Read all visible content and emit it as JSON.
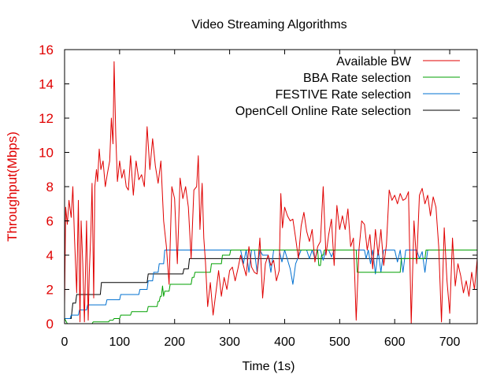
{
  "chart_data": {
    "type": "line",
    "title": "Video Streaming Algorithms",
    "xlabel": "Time (1s)",
    "ylabel": "Throughput(Mbps)",
    "xlim": [
      0,
      750
    ],
    "ylim": [
      0,
      16
    ],
    "x_ticks": [
      0,
      100,
      200,
      300,
      400,
      500,
      600,
      700
    ],
    "y_ticks": [
      0,
      2,
      4,
      6,
      8,
      10,
      12,
      14,
      16
    ],
    "x_tick_labels": [
      "0",
      "100",
      "200",
      "300",
      "400",
      "500",
      "600",
      "700"
    ],
    "y_tick_labels": [
      "0",
      "2",
      "4",
      "6",
      "8",
      "10",
      "12",
      "14",
      "16"
    ],
    "ylabel_color": "#e00000",
    "ytick_color": "#e00000",
    "grid": false,
    "legend_position": "top-right",
    "series": [
      {
        "name": "Available BW",
        "color": "#e00000",
        "x": [
          0,
          2,
          5,
          8,
          12,
          15,
          18,
          22,
          25,
          28,
          30,
          33,
          36,
          40,
          43,
          45,
          48,
          50,
          53,
          55,
          58,
          60,
          63,
          66,
          70,
          74,
          78,
          82,
          85,
          88,
          90,
          93,
          96,
          100,
          104,
          108,
          112,
          116,
          120,
          125,
          130,
          135,
          140,
          145,
          150,
          155,
          160,
          165,
          170,
          175,
          180,
          185,
          190,
          195,
          200,
          205,
          210,
          215,
          220,
          225,
          230,
          235,
          240,
          243,
          246,
          250,
          253,
          256,
          260,
          265,
          270,
          275,
          280,
          285,
          290,
          295,
          300,
          305,
          310,
          315,
          320,
          325,
          330,
          335,
          340,
          345,
          350,
          355,
          360,
          365,
          370,
          375,
          380,
          385,
          390,
          393,
          396,
          400,
          405,
          410,
          415,
          420,
          425,
          430,
          435,
          440,
          445,
          450,
          455,
          460,
          465,
          470,
          475,
          480,
          485,
          490,
          495,
          500,
          505,
          510,
          515,
          520,
          525,
          530,
          535,
          540,
          545,
          550,
          555,
          560,
          565,
          570,
          575,
          580,
          585,
          590,
          595,
          600,
          605,
          610,
          615,
          620,
          625,
          630,
          635,
          640,
          645,
          650,
          655,
          660,
          665,
          670,
          675,
          680,
          685,
          690,
          695,
          700,
          705,
          710,
          715,
          720,
          725,
          730,
          735,
          740,
          745,
          750
        ],
        "y": [
          1.1,
          6.8,
          5.8,
          7.2,
          6.2,
          8.0,
          5.0,
          1.8,
          7.2,
          0.1,
          6.0,
          3.5,
          0.1,
          6.0,
          0.2,
          3.0,
          5.5,
          8.2,
          1.5,
          8.0,
          9.0,
          8.3,
          10.2,
          9.0,
          9.5,
          8.0,
          8.8,
          9.5,
          12.0,
          10.5,
          15.3,
          11.0,
          8.3,
          9.5,
          8.5,
          9.0,
          8.0,
          7.8,
          9.8,
          7.5,
          9.5,
          8.4,
          8.7,
          8.0,
          11.5,
          9.0,
          10.8,
          9.2,
          8.2,
          9.5,
          6.0,
          4.5,
          2.3,
          8.0,
          7.3,
          3.5,
          8.5,
          7.3,
          8.0,
          6.8,
          3.8,
          7.8,
          8.0,
          9.8,
          5.5,
          8.2,
          5.0,
          3.6,
          1.0,
          2.4,
          0.5,
          1.8,
          3.1,
          1.6,
          2.7,
          2.0,
          3.1,
          3.3,
          2.5,
          3.2,
          4.0,
          3.4,
          2.8,
          4.5,
          3.3,
          3.0,
          2.9,
          5.0,
          1.5,
          3.5,
          4.0,
          3.4,
          3.7,
          2.5,
          3.1,
          7.6,
          5.6,
          6.8,
          6.3,
          6.0,
          6.1,
          5.0,
          3.8,
          5.7,
          6.5,
          5.4,
          4.8,
          5.5,
          3.6,
          4.5,
          4.8,
          8.0,
          4.0,
          5.2,
          6.1,
          3.4,
          6.9,
          5.5,
          6.3,
          5.5,
          6.7,
          4.5,
          5.0,
          0.2,
          4.3,
          6.0,
          5.8,
          4.3,
          5.2,
          3.2,
          5.5,
          4.0,
          5.5,
          3.4,
          4.6,
          7.8,
          7.2,
          7.5,
          7.0,
          7.6,
          7.2,
          7.3,
          7.7,
          0.0,
          6.0,
          3.5,
          7.5,
          7.9,
          7.0,
          7.5,
          6.3,
          7.4,
          6.8,
          4.5,
          0.1,
          5.6,
          2.5,
          0.6,
          5.0,
          2.2,
          3.5,
          2.8,
          1.8,
          2.5,
          1.6,
          3.0,
          2.0,
          3.8
        ]
      },
      {
        "name": "BBA Rate selection",
        "color": "#00a000",
        "x": [
          0,
          5,
          50,
          52,
          80,
          82,
          88,
          90,
          100,
          102,
          120,
          122,
          150,
          152,
          168,
          170,
          172,
          174,
          176,
          178,
          180,
          182,
          190,
          192,
          230,
          232,
          235,
          237,
          265,
          267,
          285,
          287,
          300,
          302,
          320,
          322,
          420,
          422,
          460,
          462,
          465,
          467,
          470,
          472,
          530,
          532,
          610,
          612,
          655,
          657,
          750
        ],
        "y": [
          0.3,
          0.0,
          0.0,
          0.1,
          0.1,
          0.2,
          0.2,
          0.3,
          0.3,
          0.5,
          0.5,
          0.7,
          0.7,
          1.0,
          1.0,
          1.3,
          1.3,
          1.6,
          1.6,
          2.2,
          1.6,
          1.9,
          1.9,
          2.3,
          2.3,
          2.7,
          2.7,
          3.0,
          3.0,
          3.5,
          3.5,
          4.0,
          4.0,
          4.3,
          4.3,
          4.3,
          4.3,
          4.3,
          4.3,
          3.4,
          3.4,
          4.0,
          4.0,
          4.3,
          4.3,
          3.0,
          3.0,
          3.8,
          3.8,
          4.3,
          4.3
        ]
      },
      {
        "name": "FESTIVE Rate selection",
        "color": "#0070d0",
        "x": [
          0,
          10,
          12,
          25,
          27,
          40,
          42,
          60,
          62,
          75,
          77,
          100,
          102,
          120,
          122,
          135,
          137,
          150,
          152,
          160,
          162,
          170,
          172,
          180,
          182,
          320,
          325,
          330,
          335,
          340,
          345,
          350,
          355,
          360,
          370,
          375,
          380,
          390,
          395,
          400,
          410,
          415,
          420,
          430,
          440,
          445,
          450,
          455,
          460,
          465,
          470,
          475,
          480,
          485,
          490,
          495,
          500,
          545,
          548,
          552,
          556,
          560,
          565,
          570,
          575,
          580,
          585,
          590,
          600,
          605,
          610,
          615,
          620,
          630,
          640,
          645,
          650,
          655,
          660,
          670,
          680,
          690,
          700,
          710,
          720,
          730,
          740,
          750
        ],
        "y": [
          0.3,
          0.3,
          0.5,
          0.5,
          0.8,
          0.8,
          1.1,
          1.1,
          1.1,
          1.1,
          1.4,
          1.4,
          1.7,
          1.7,
          1.7,
          1.7,
          2.0,
          2.0,
          2.5,
          2.5,
          3.0,
          3.0,
          3.5,
          3.5,
          4.3,
          4.3,
          3.5,
          4.3,
          3.0,
          4.3,
          4.3,
          3.0,
          4.3,
          4.0,
          4.0,
          3.0,
          4.3,
          4.3,
          3.6,
          4.3,
          3.2,
          2.3,
          3.5,
          4.3,
          4.3,
          3.8,
          4.3,
          3.8,
          4.3,
          4.3,
          3.7,
          4.3,
          4.3,
          3.9,
          4.3,
          4.3,
          4.3,
          4.3,
          3.8,
          4.3,
          3.5,
          4.3,
          2.9,
          4.3,
          3.0,
          4.3,
          4.3,
          4.3,
          4.3,
          3.6,
          4.3,
          3.0,
          4.3,
          4.3,
          4.3,
          3.8,
          4.2,
          3.0,
          4.3,
          4.3,
          4.3,
          4.3,
          4.3,
          4.3,
          4.3,
          4.3,
          4.3,
          4.3
        ]
      },
      {
        "name": "OpenCell Online Rate selection",
        "color": "#000000",
        "x": [
          0,
          12,
          15,
          20,
          22,
          65,
          67,
          150,
          152,
          215,
          217,
          225,
          227,
          750
        ],
        "y": [
          0.3,
          0.3,
          1.2,
          1.2,
          1.7,
          1.7,
          2.4,
          2.4,
          2.9,
          2.9,
          3.2,
          3.2,
          3.8,
          3.8
        ]
      }
    ]
  }
}
